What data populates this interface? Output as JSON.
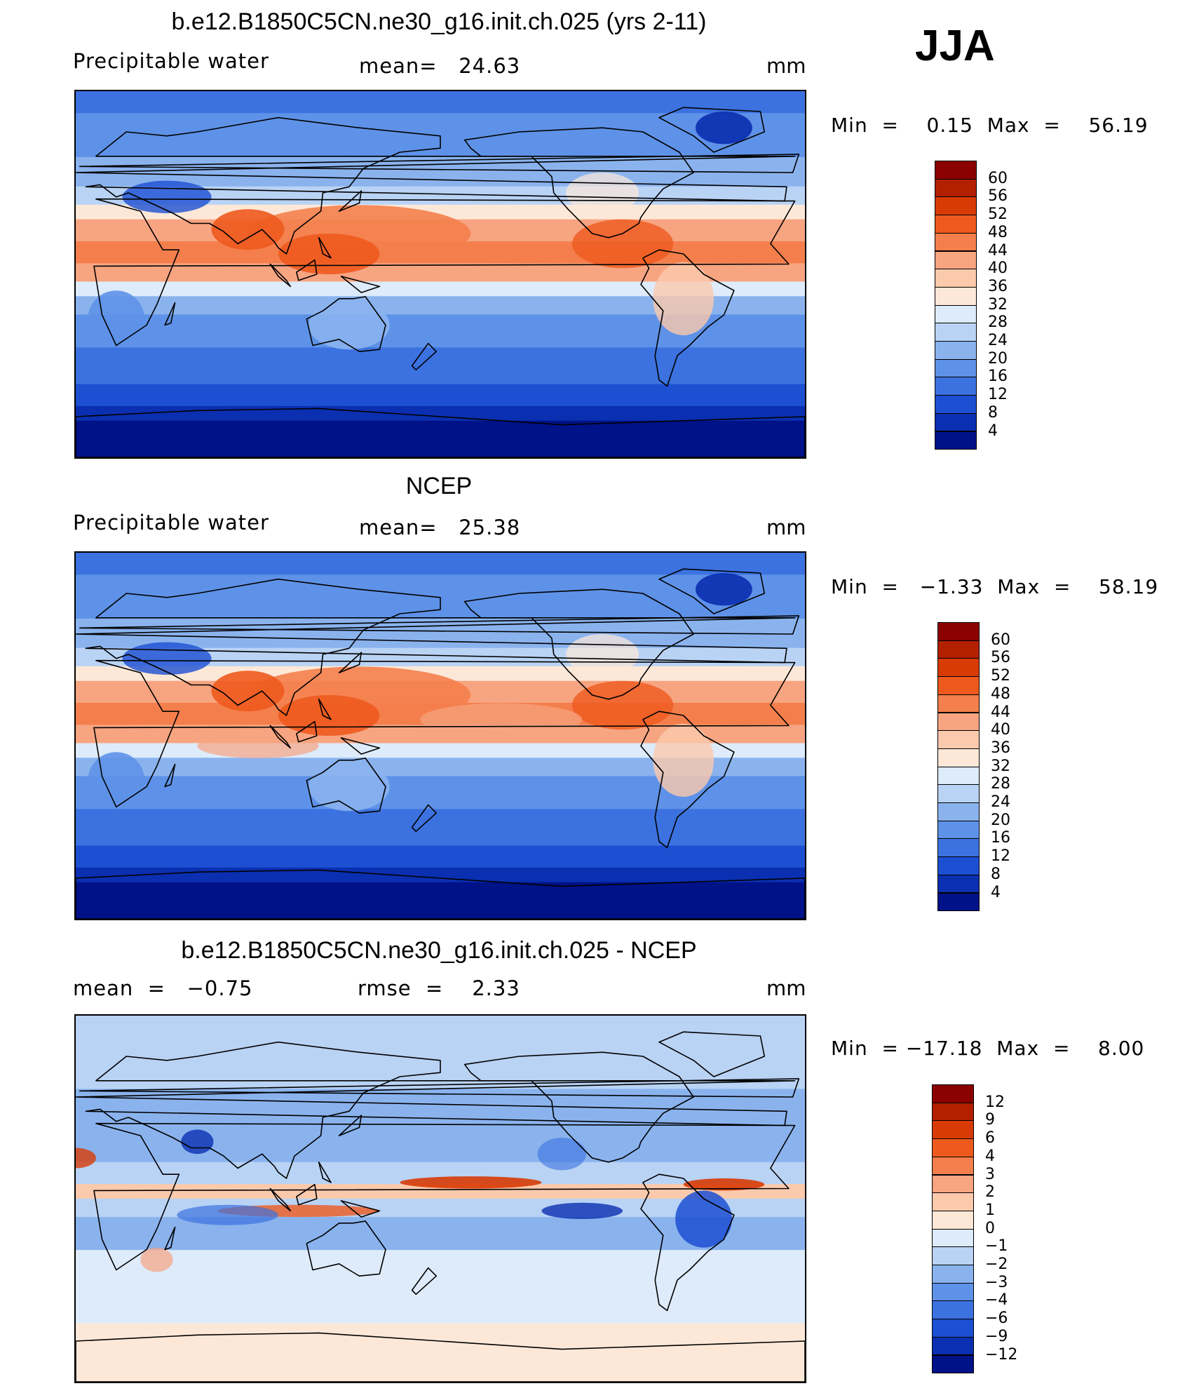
{
  "season": "JJA",
  "panels": [
    {
      "title": "b.e12.B1850C5CN.ne30_g16.init.ch.025 (yrs 2-11)",
      "left_label": "Precipitable water",
      "center_label": "mean=   24.63",
      "right_label": "mm",
      "minmax": "Min  =    0.15  Max  =    56.19",
      "map": "model",
      "colorbar": {
        "labels": [
          "60",
          "56",
          "52",
          "48",
          "44",
          "40",
          "36",
          "32",
          "28",
          "24",
          "20",
          "16",
          "12",
          "8",
          "4"
        ],
        "colors": [
          "#8B0000",
          "#B22000",
          "#D83B05",
          "#EE5A1E",
          "#F47F4C",
          "#F7A481",
          "#FBC9AC",
          "#FDE8D8",
          "#DDEBFA",
          "#B9D3F5",
          "#8AB3EE",
          "#5E92E8",
          "#3C72E0",
          "#1C4FD2",
          "#0A2FB0",
          "#001288"
        ]
      }
    },
    {
      "title": "NCEP",
      "left_label": "Precipitable water",
      "center_label": "mean=   25.38",
      "right_label": "mm",
      "minmax": "Min  =   −1.33  Max  =    58.19",
      "map": "obs",
      "colorbar": {
        "labels": [
          "60",
          "56",
          "52",
          "48",
          "44",
          "40",
          "36",
          "32",
          "28",
          "24",
          "20",
          "16",
          "12",
          "8",
          "4"
        ],
        "colors": [
          "#8B0000",
          "#B22000",
          "#D83B05",
          "#EE5A1E",
          "#F47F4C",
          "#F7A481",
          "#FBC9AC",
          "#FDE8D8",
          "#DDEBFA",
          "#B9D3F5",
          "#8AB3EE",
          "#5E92E8",
          "#3C72E0",
          "#1C4FD2",
          "#0A2FB0",
          "#001288"
        ]
      }
    },
    {
      "title": "b.e12.B1850C5CN.ne30_g16.init.ch.025 - NCEP",
      "left_label": "mean  =   −0.75",
      "center_label": "rmse  =    2.33",
      "right_label": "mm",
      "minmax": "Min  = −17.18  Max  =    8.00",
      "map": "diff",
      "colorbar": {
        "labels": [
          "12",
          "9",
          "6",
          "4",
          "3",
          "2",
          "1",
          "0",
          "−1",
          "−2",
          "−3",
          "−4",
          "−6",
          "−9",
          "−12"
        ],
        "colors": [
          "#8B0000",
          "#B22000",
          "#D83B05",
          "#EE5A1E",
          "#F47F4C",
          "#F7A481",
          "#FBC9AC",
          "#FDE8D8",
          "#DDEBFA",
          "#B9D3F5",
          "#8AB3EE",
          "#5E92E8",
          "#3C72E0",
          "#1C4FD2",
          "#0A2FB0",
          "#001288"
        ]
      }
    }
  ]
}
